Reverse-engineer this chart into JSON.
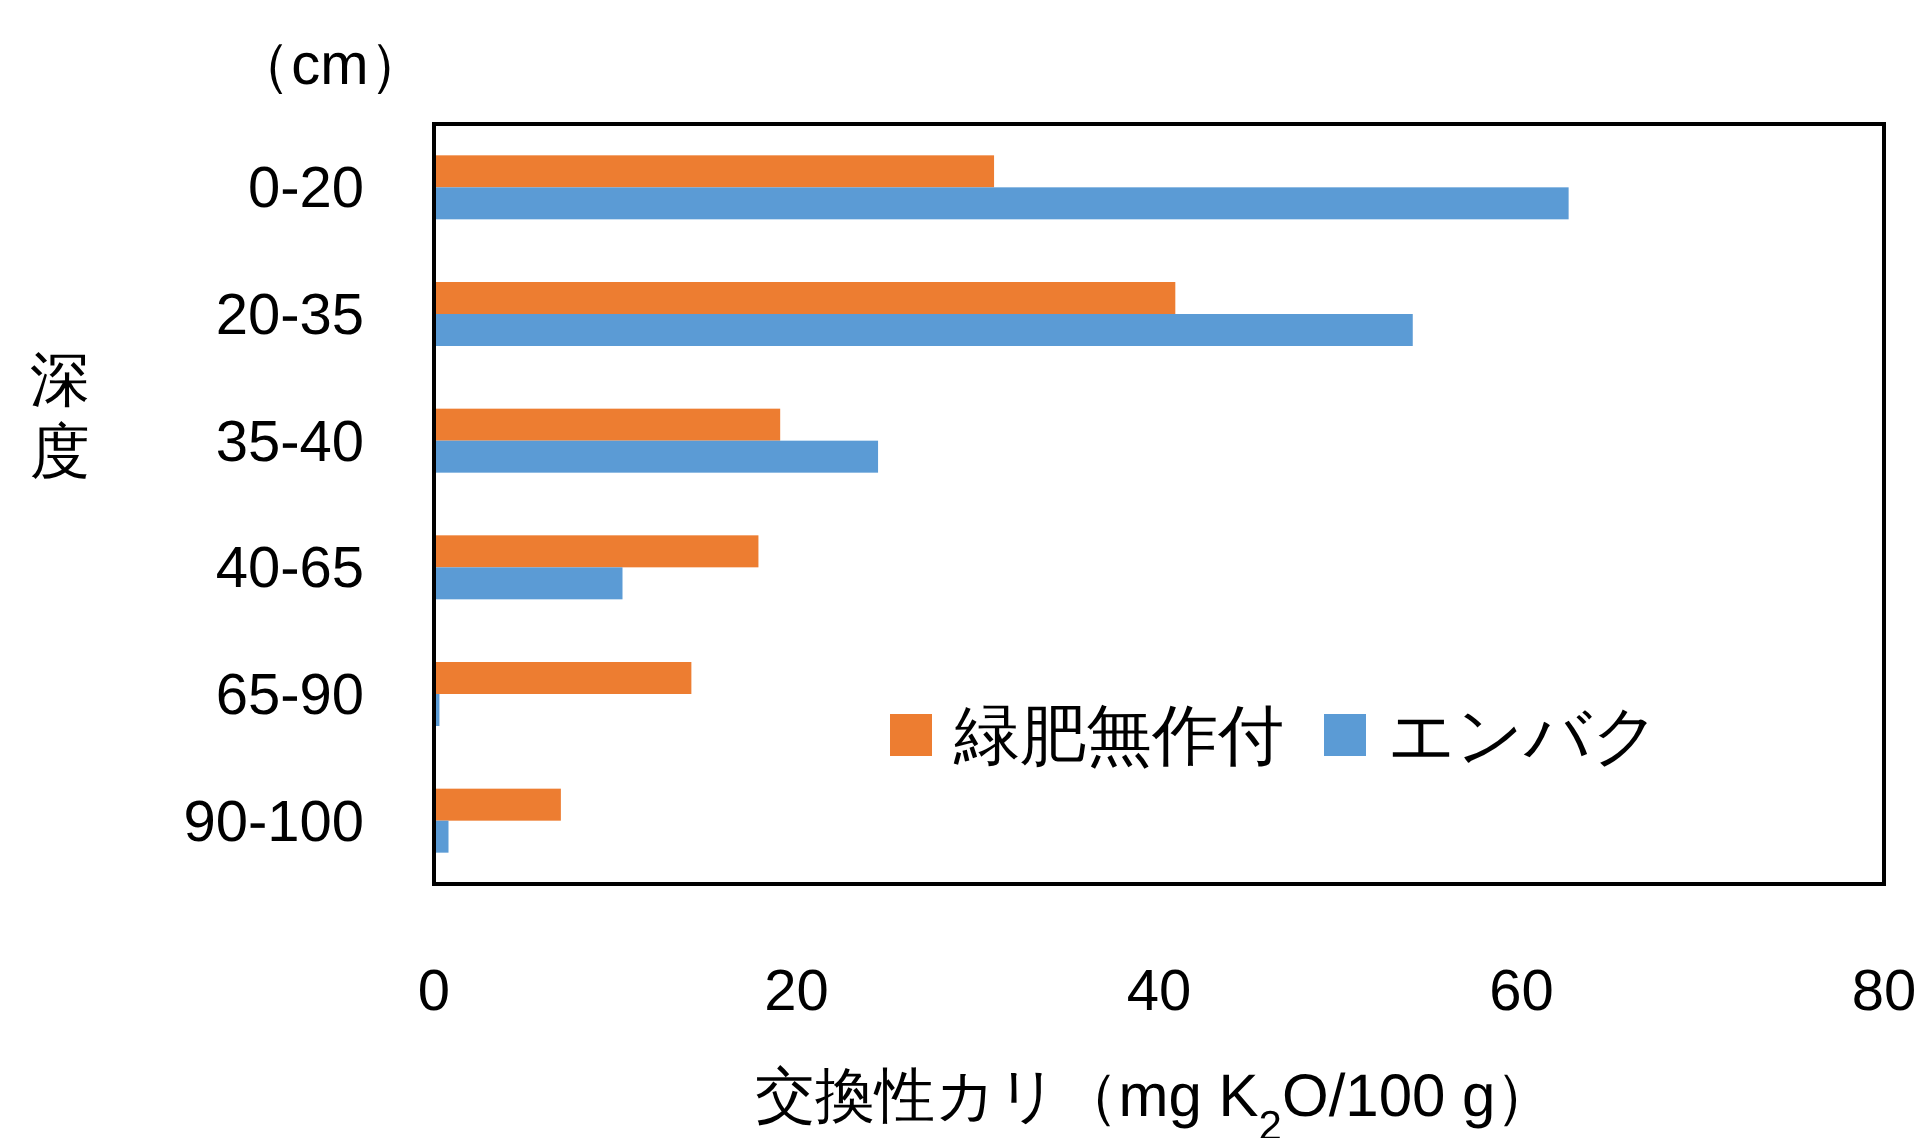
{
  "chart_data": {
    "type": "bar",
    "orientation": "horizontal",
    "xlabel": "交換性カリ（mg K$_{2}$O/100 g）",
    "ylabel": "深度",
    "annotations": [
      "（cm）"
    ],
    "categories": [
      "0-20",
      "20-35",
      "35-40",
      "40-65",
      "65-90",
      "90-100"
    ],
    "series": [
      {
        "name": "緑肥無作付",
        "color": "#ed7d31",
        "values": [
          30.9,
          40.9,
          19.1,
          17.9,
          14.2,
          7.0
        ]
      },
      {
        "name": "エンバク",
        "color": "#5b9bd5",
        "values": [
          62.6,
          54.0,
          24.5,
          10.4,
          0.3,
          0.8
        ]
      }
    ],
    "xlim": [
      0,
      80
    ],
    "xticks": [
      0,
      20,
      40,
      60,
      80
    ],
    "grid": false,
    "legend": "bottom right"
  }
}
